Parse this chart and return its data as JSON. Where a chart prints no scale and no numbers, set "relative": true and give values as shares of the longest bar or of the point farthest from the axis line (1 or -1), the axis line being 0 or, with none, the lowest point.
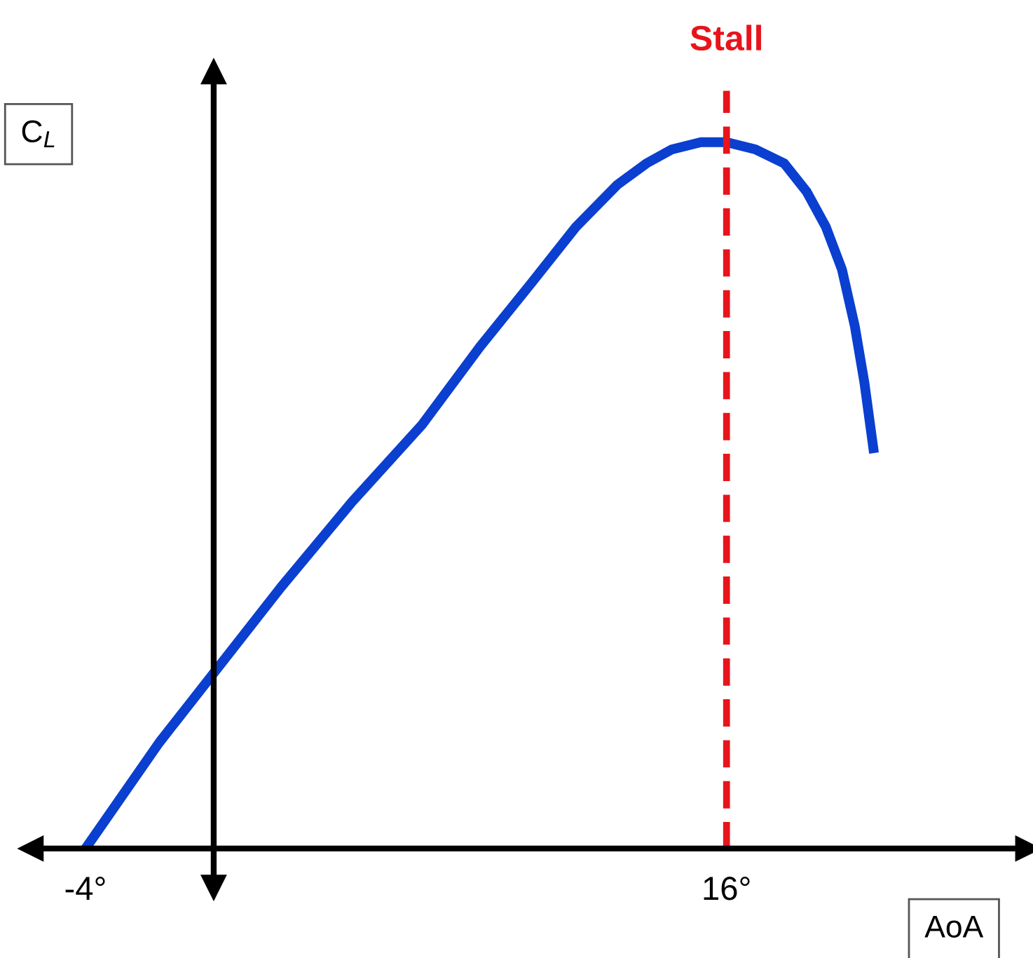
{
  "chart_data": {
    "type": "line",
    "relative": true,
    "xlabel": "AoA",
    "ylabel": "C$_{L}$",
    "x": [
      -4,
      -1.7,
      2.1,
      4.3,
      6.5,
      8.3,
      9.9,
      11.3,
      12.6,
      13.5,
      14.3,
      15.2,
      16,
      16.9,
      17.8,
      18.5,
      19.1,
      19.6,
      20,
      20.3,
      20.6
    ],
    "series": [
      {
        "color": "#0a3fd0",
        "values": [
          0,
          0.15,
          0.37,
          0.49,
          0.6,
          0.71,
          0.8,
          0.88,
          0.94,
          0.97,
          0.99,
          1,
          1,
          0.99,
          0.97,
          0.93,
          0.88,
          0.82,
          0.74,
          0.66,
          0.56
        ]
      }
    ],
    "xlim": [
      -5.7,
      25.4
    ],
    "xticks": [
      {
        "value": -4,
        "label": "-4°"
      },
      {
        "value": 16,
        "label": "16°"
      }
    ],
    "ref_lines": [
      {
        "axis": "x",
        "value": 16,
        "label": "Stall",
        "color": "#e8141b",
        "line_style": "dashed"
      }
    ],
    "grid": false,
    "legend": false,
    "marker": "none",
    "line_style": "solid"
  }
}
